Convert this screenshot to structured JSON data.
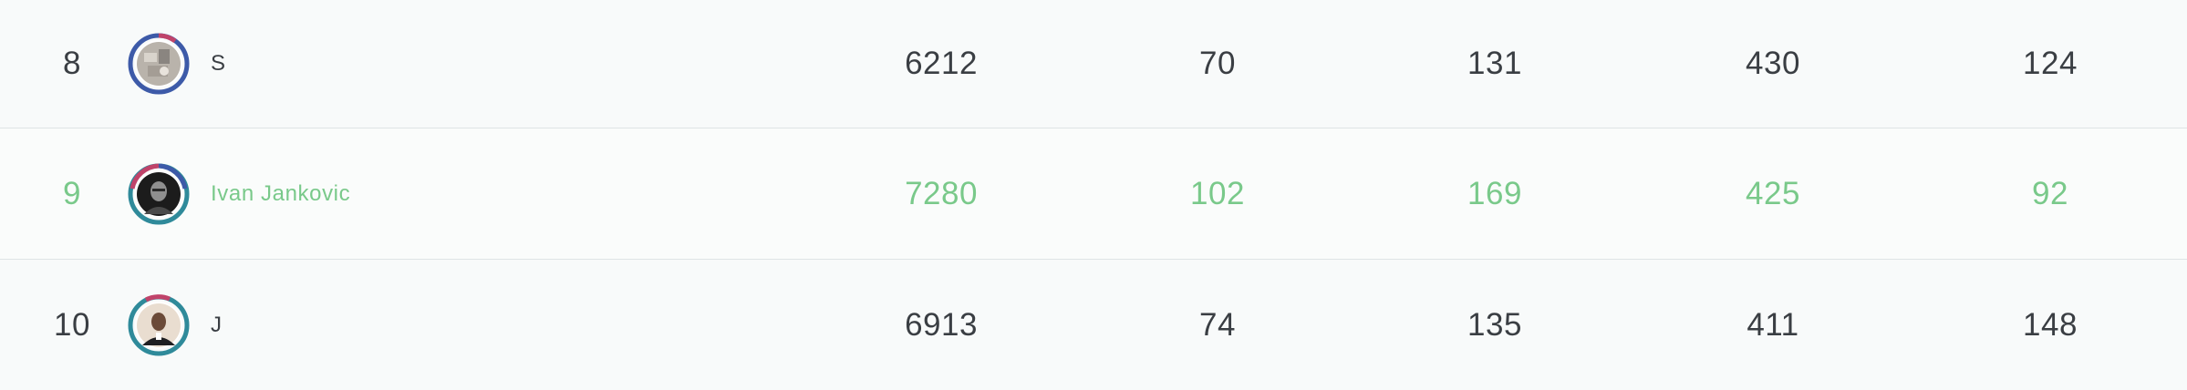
{
  "leaderboard": {
    "highlight_color": "#79c98a",
    "text_color": "#3a3e43",
    "rows": [
      {
        "rank": "8",
        "name": "S",
        "stat1": "6212",
        "stat2": "70",
        "stat3": "131",
        "stat4": "430",
        "stat5": "124",
        "avatar_icon": "user-avatar-photo",
        "is_current_user": false
      },
      {
        "rank": "9",
        "name": "Ivan Jankovic",
        "stat1": "7280",
        "stat2": "102",
        "stat3": "169",
        "stat4": "425",
        "stat5": "92",
        "avatar_icon": "user-avatar-photo",
        "is_current_user": true
      },
      {
        "rank": "10",
        "name": "J",
        "stat1": "6913",
        "stat2": "74",
        "stat3": "135",
        "stat4": "411",
        "stat5": "148",
        "avatar_icon": "user-avatar-photo",
        "is_current_user": false
      }
    ]
  }
}
